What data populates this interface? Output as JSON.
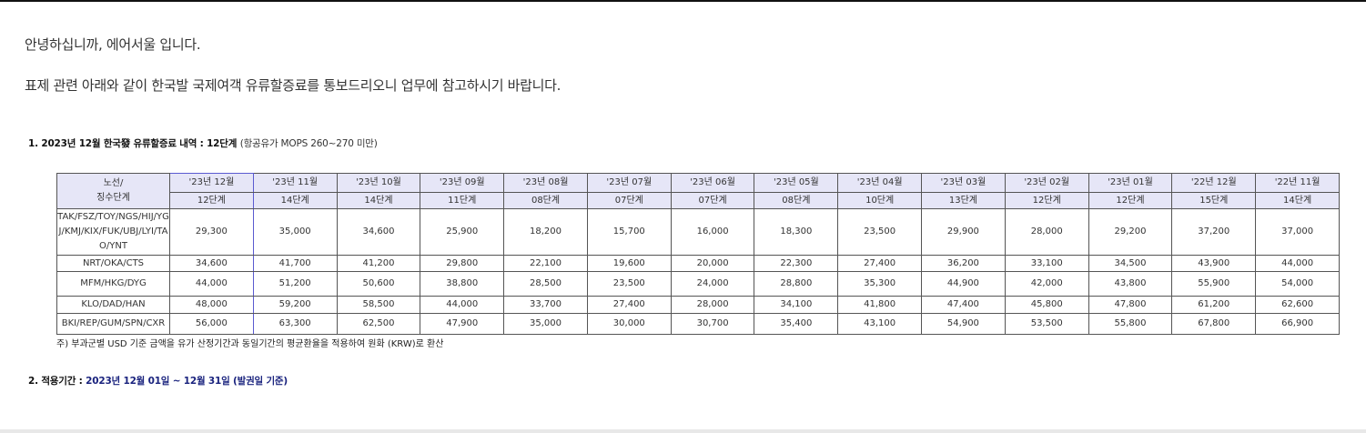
{
  "greeting": "안녕하십니까, 에어서울 입니다.",
  "intro": "표제 관련 아래와 같이 한국발 국제여객 유류할증료를 통보드리오니 업무에 참고하시기 바랍니다.",
  "section1": {
    "title": "1. 2023년 12월 한국發 유류할증료 내역 : 12단계",
    "subtitle": "(항공유가 MOPS 260~270 미만)"
  },
  "table": {
    "corner_header": [
      "노선/",
      "징수단계"
    ],
    "months": [
      "'23년 12월",
      "'23년 11월",
      "'23년 10월",
      "'23년 09월",
      "'23년 08월",
      "'23년 07월",
      "'23년 06월",
      "'23년 05월",
      "'23년 04월",
      "'23년 03월",
      "'23년 02월",
      "'23년 01월",
      "'22년 12월",
      "'22년 11월"
    ],
    "levels": [
      "12단계",
      "14단계",
      "14단계",
      "11단계",
      "08단계",
      "07단계",
      "07단계",
      "08단계",
      "10단계",
      "13단계",
      "12단계",
      "12단계",
      "15단계",
      "14단계"
    ],
    "rows": [
      {
        "route": "TAK/FSZ/TOY/NGS/HIJ/YGJ/KMJ/KIX/FUK/UBJ/LYI/TAO/YNT",
        "values": [
          "29,300",
          "35,000",
          "34,600",
          "25,900",
          "18,200",
          "15,700",
          "16,000",
          "18,300",
          "23,500",
          "29,900",
          "28,000",
          "29,200",
          "37,200",
          "37,000"
        ]
      },
      {
        "route": "NRT/OKA/CTS",
        "values": [
          "34,600",
          "41,700",
          "41,200",
          "29,800",
          "22,100",
          "19,600",
          "20,000",
          "22,300",
          "27,400",
          "36,200",
          "33,100",
          "34,500",
          "43,900",
          "44,000"
        ]
      },
      {
        "route": "MFM/HKG/DYG",
        "values": [
          "44,000",
          "51,200",
          "50,600",
          "38,800",
          "28,500",
          "23,500",
          "24,000",
          "28,800",
          "35,300",
          "44,900",
          "42,000",
          "43,800",
          "55,900",
          "54,000"
        ]
      },
      {
        "route": "KLO/DAD/HAN",
        "values": [
          "48,000",
          "59,200",
          "58,500",
          "44,000",
          "33,700",
          "27,400",
          "28,000",
          "34,100",
          "41,800",
          "47,400",
          "45,800",
          "47,800",
          "61,200",
          "62,600"
        ]
      },
      {
        "route": "BKI/REP/GUM/SPN/CXR",
        "values": [
          "56,000",
          "63,300",
          "62,500",
          "47,900",
          "35,000",
          "30,000",
          "30,700",
          "35,400",
          "43,100",
          "54,900",
          "53,500",
          "55,800",
          "67,800",
          "66,900"
        ]
      }
    ]
  },
  "note": "주) 부과군별 USD 기준 금액을 유가 산정기간과 동일기간의 평균환율을 적용하여 원화 (KRW)로 환산",
  "section2": {
    "label": "2. 적용기간 :",
    "value": "2023년 12월 01일 ~ 12월 31일 (발권일 기준)"
  },
  "colors": {
    "header_bg": "#e6e6f7",
    "highlight_border": "#5a5ad0",
    "period_text": "#1a237e"
  }
}
